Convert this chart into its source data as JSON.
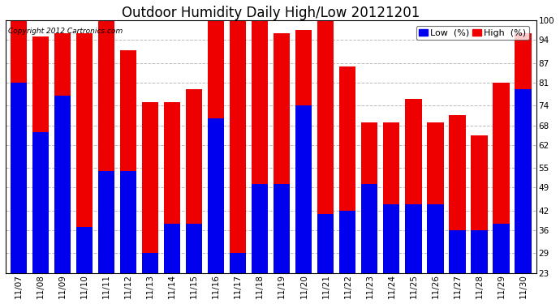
{
  "title": "Outdoor Humidity Daily High/Low 20121201",
  "copyright": "Copyright 2012 Cartronics.com",
  "legend_low": "Low  (%)",
  "legend_high": "High  (%)",
  "dates": [
    "11/07",
    "11/08",
    "11/09",
    "11/10",
    "11/11",
    "11/12",
    "11/13",
    "11/14",
    "11/15",
    "11/16",
    "11/17",
    "11/18",
    "11/19",
    "11/20",
    "11/21",
    "11/22",
    "11/23",
    "11/24",
    "11/25",
    "11/26",
    "11/27",
    "11/28",
    "11/29",
    "11/30"
  ],
  "high": [
    100,
    95,
    96,
    96,
    100,
    91,
    75,
    75,
    79,
    100,
    100,
    100,
    96,
    97,
    100,
    86,
    69,
    69,
    76,
    69,
    71,
    65,
    81,
    96
  ],
  "low": [
    81,
    66,
    77,
    37,
    54,
    54,
    29,
    38,
    38,
    70,
    29,
    50,
    50,
    74,
    41,
    42,
    50,
    44,
    44,
    44,
    36,
    36,
    38,
    79
  ],
  "ylim_min": 23,
  "ylim_max": 100,
  "yticks": [
    23,
    29,
    36,
    42,
    49,
    55,
    62,
    68,
    74,
    81,
    87,
    94,
    100
  ],
  "bar_color_low": "#0000ee",
  "bar_color_high": "#ee0000",
  "background_color": "#ffffff",
  "grid_color": "#bbbbbb",
  "title_fontsize": 12,
  "tick_fontsize": 7.5,
  "legend_fontsize": 8,
  "bar_width": 0.75
}
